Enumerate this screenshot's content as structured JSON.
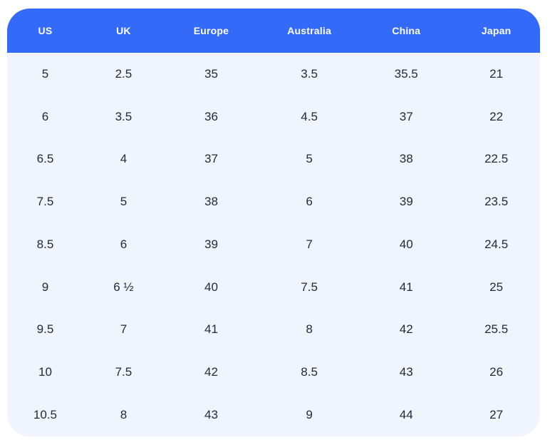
{
  "colors": {
    "page_bg": "#ffffff",
    "header_bg": "#336af7",
    "header_text": "#ffffff",
    "body_bg": "#f0f4fc",
    "body_text": "#212b3b"
  },
  "chart_data": {
    "type": "table",
    "columns": [
      "US",
      "UK",
      "Europe",
      "Australia",
      "China",
      "Japan"
    ],
    "rows": [
      [
        "5",
        "2.5",
        "35",
        "3.5",
        "35.5",
        "21"
      ],
      [
        "6",
        "3.5",
        "36",
        "4.5",
        "37",
        "22"
      ],
      [
        "6.5",
        "4",
        "37",
        "5",
        "38",
        "22.5"
      ],
      [
        "7.5",
        "5",
        "38",
        "6",
        "39",
        "23.5"
      ],
      [
        "8.5",
        "6",
        "39",
        "7",
        "40",
        "24.5"
      ],
      [
        "9",
        "6 ½",
        "40",
        "7.5",
        "41",
        "25"
      ],
      [
        "9.5",
        "7",
        "41",
        "8",
        "42",
        "25.5"
      ],
      [
        "10",
        "7.5",
        "42",
        "8.5",
        "43",
        "26"
      ],
      [
        "10.5",
        "8",
        "43",
        "9",
        "44",
        "27"
      ]
    ]
  }
}
